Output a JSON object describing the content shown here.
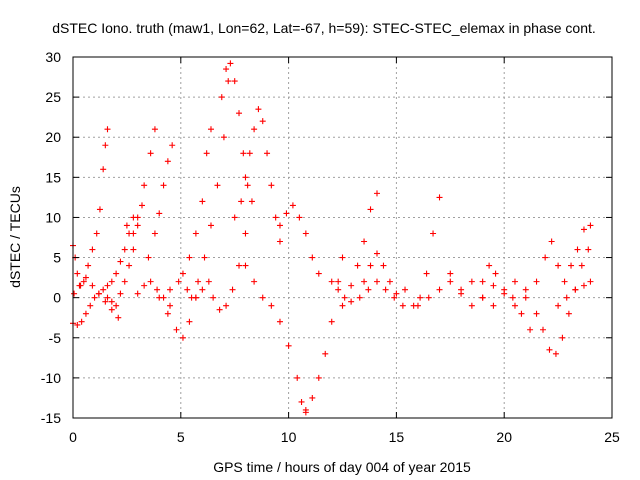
{
  "chart_data": {
    "type": "scatter",
    "title": "dSTEC Iono. truth (maw1, Lon=62, Lat=-67, h=59): STEC-STEC_elemax in phase cont.",
    "xlabel": "GPS time / hours of day 004 of year 2015",
    "ylabel": "dSTEC  / TECUs",
    "xlim": [
      0,
      25
    ],
    "ylim": [
      -15,
      30
    ],
    "xticks": [
      "0",
      "5",
      "10",
      "15",
      "20",
      "25"
    ],
    "yticks": [
      "-15",
      "-10",
      "-5",
      "0",
      "5",
      "10",
      "15",
      "20",
      "25",
      "30"
    ],
    "grid": true,
    "marker": "plus",
    "marker_color": "#ff0000",
    "series": [
      {
        "x": [
          0.0,
          0.1,
          0.2,
          0.35,
          0.5,
          0.7,
          0.9,
          1.1,
          1.25,
          1.4,
          1.5,
          1.6
        ],
        "y": [
          6.5,
          5.0,
          3.0,
          1.5,
          2.0,
          4.0,
          6.0,
          8.0,
          11.0,
          16.0,
          19.0,
          21.0
        ]
      },
      {
        "x": [
          0.0,
          0.2,
          0.4,
          0.6,
          0.8,
          1.0,
          1.2,
          1.4,
          1.6,
          1.8,
          2.0,
          2.2,
          2.4,
          2.6,
          2.8
        ],
        "y": [
          -3.2,
          -3.4,
          -3.0,
          -2.0,
          -1.0,
          0.0,
          0.5,
          1.0,
          1.5,
          2.0,
          3.0,
          4.5,
          6.0,
          8.0,
          10.0
        ]
      },
      {
        "x": [
          0.05,
          0.3,
          0.6,
          0.9,
          1.2,
          1.5,
          1.8,
          2.1
        ],
        "y": [
          0.5,
          1.5,
          2.5,
          1.5,
          0.5,
          -0.5,
          -1.5,
          -2.5
        ]
      },
      {
        "x": [
          1.6,
          1.8,
          2.0,
          2.2,
          2.4,
          2.6,
          2.8,
          3.0,
          3.2
        ],
        "y": [
          0.0,
          -0.5,
          -1.0,
          0.5,
          2.0,
          4.0,
          6.0,
          9.0,
          11.5
        ]
      },
      {
        "x": [
          2.5,
          2.8,
          3.0,
          3.3,
          3.6,
          3.8
        ],
        "y": [
          9.0,
          8.0,
          10.0,
          14.0,
          18.0,
          21.0
        ]
      },
      {
        "x": [
          3.0,
          3.3,
          3.6,
          3.9,
          4.2,
          4.5
        ],
        "y": [
          0.5,
          1.5,
          2.0,
          1.0,
          0.0,
          -1.0
        ]
      },
      {
        "x": [
          3.5,
          3.8,
          4.0,
          4.2,
          4.4,
          4.6
        ],
        "y": [
          5.0,
          8.0,
          10.5,
          14.0,
          17.0,
          19.0
        ]
      },
      {
        "x": [
          4.0,
          4.4,
          4.8,
          5.1,
          5.4,
          5.7
        ],
        "y": [
          0.0,
          -2.0,
          -4.0,
          -5.0,
          -3.0,
          0.0
        ]
      },
      {
        "x": [
          4.5,
          4.9,
          5.3,
          5.7,
          6.0,
          6.3
        ],
        "y": [
          1.0,
          2.0,
          1.0,
          0.0,
          1.0,
          2.0
        ]
      },
      {
        "x": [
          5.1,
          5.4,
          5.7,
          6.0,
          6.2,
          6.4
        ],
        "y": [
          3.0,
          5.0,
          8.0,
          12.0,
          18.0,
          21.0
        ]
      },
      {
        "x": [
          5.5,
          5.8,
          6.1,
          6.4,
          6.7,
          7.0,
          7.2
        ],
        "y": [
          0.0,
          2.0,
          5.0,
          9.0,
          14.0,
          20.0,
          27.0
        ]
      },
      {
        "x": [
          6.9,
          7.1,
          7.3,
          7.5,
          7.7,
          7.9,
          8.1
        ],
        "y": [
          25.0,
          28.5,
          29.2,
          27.0,
          23.0,
          18.0,
          14.0
        ]
      },
      {
        "x": [
          6.5,
          6.8,
          7.1,
          7.4,
          7.7,
          8.0,
          8.3
        ],
        "y": [
          0.0,
          -1.5,
          -1.0,
          1.0,
          4.0,
          8.0,
          12.0
        ]
      },
      {
        "x": [
          7.5,
          7.8,
          8.0,
          8.2,
          8.4,
          8.6,
          8.8,
          9.0,
          9.2,
          9.4,
          9.6
        ],
        "y": [
          10.0,
          12.0,
          15.0,
          18.0,
          21.0,
          23.5,
          22.0,
          18.0,
          14.0,
          10.0,
          7.0
        ]
      },
      {
        "x": [
          8.0,
          8.4,
          8.8,
          9.2,
          9.6,
          10.0,
          10.4,
          10.6,
          10.8
        ],
        "y": [
          4.0,
          2.0,
          0.0,
          -1.0,
          -3.0,
          -6.0,
          -10.0,
          -13.0,
          -14.3
        ]
      },
      {
        "x": [
          10.8,
          11.1,
          11.4,
          11.7,
          12.0,
          12.3,
          12.5
        ],
        "y": [
          -14.0,
          -12.5,
          -10.0,
          -7.0,
          -3.0,
          2.0,
          5.0
        ]
      },
      {
        "x": [
          9.6,
          9.9,
          10.2,
          10.5,
          10.8,
          11.1,
          11.4
        ],
        "y": [
          9.0,
          10.5,
          11.5,
          10.0,
          8.0,
          5.0,
          3.0
        ]
      },
      {
        "x": [
          12.0,
          12.3,
          12.6,
          12.9,
          13.2,
          13.5,
          13.8,
          14.1
        ],
        "y": [
          2.0,
          1.0,
          0.0,
          1.5,
          4.0,
          7.0,
          11.0,
          13.0
        ]
      },
      {
        "x": [
          12.5,
          12.9,
          13.3,
          13.7,
          14.1,
          14.5,
          14.9,
          15.3
        ],
        "y": [
          -1.0,
          -0.5,
          0.0,
          1.0,
          2.0,
          1.0,
          0.0,
          -1.0
        ]
      },
      {
        "x": [
          13.5,
          13.8,
          14.1,
          14.4,
          14.7,
          15.0
        ],
        "y": [
          2.0,
          4.0,
          5.5,
          4.0,
          2.0,
          0.5
        ]
      },
      {
        "x": [
          15.4,
          15.8,
          16.1,
          16.4,
          16.7,
          17.0
        ],
        "y": [
          1.0,
          -1.0,
          0.0,
          3.0,
          8.0,
          12.5
        ]
      },
      {
        "x": [
          16.0,
          16.5,
          17.0,
          17.5,
          18.0,
          18.5,
          19.0,
          19.5
        ],
        "y": [
          -1.0,
          0.0,
          1.0,
          2.0,
          0.5,
          -1.0,
          0.0,
          1.5
        ]
      },
      {
        "x": [
          17.5,
          18.0,
          18.5,
          19.0,
          19.5,
          20.0,
          20.5,
          21.0
        ],
        "y": [
          3.0,
          1.0,
          2.0,
          0.0,
          -1.0,
          0.5,
          2.0,
          1.0
        ]
      },
      {
        "x": [
          19.0,
          19.3,
          19.6,
          20.0,
          20.4,
          20.8,
          21.2
        ],
        "y": [
          2.0,
          4.0,
          3.0,
          1.0,
          0.0,
          -2.0,
          -4.0
        ]
      },
      {
        "x": [
          20.5,
          21.0,
          21.5,
          21.9,
          22.2,
          22.5
        ],
        "y": [
          -1.0,
          0.0,
          2.0,
          5.0,
          7.0,
          4.0
        ]
      },
      {
        "x": [
          21.5,
          21.8,
          22.1,
          22.4,
          22.7,
          23.0,
          23.3,
          23.6,
          23.9
        ],
        "y": [
          -2.0,
          -4.0,
          -6.5,
          -7.0,
          -5.0,
          -2.0,
          1.0,
          4.0,
          6.0
        ]
      },
      {
        "x": [
          22.8,
          23.1,
          23.4,
          23.7,
          24.0
        ],
        "y": [
          2.0,
          4.0,
          6.0,
          8.5,
          9.0
        ]
      },
      {
        "x": [
          22.5,
          22.9,
          23.3,
          23.7,
          24.0
        ],
        "y": [
          -1.0,
          0.0,
          1.0,
          1.5,
          2.0
        ]
      }
    ]
  }
}
